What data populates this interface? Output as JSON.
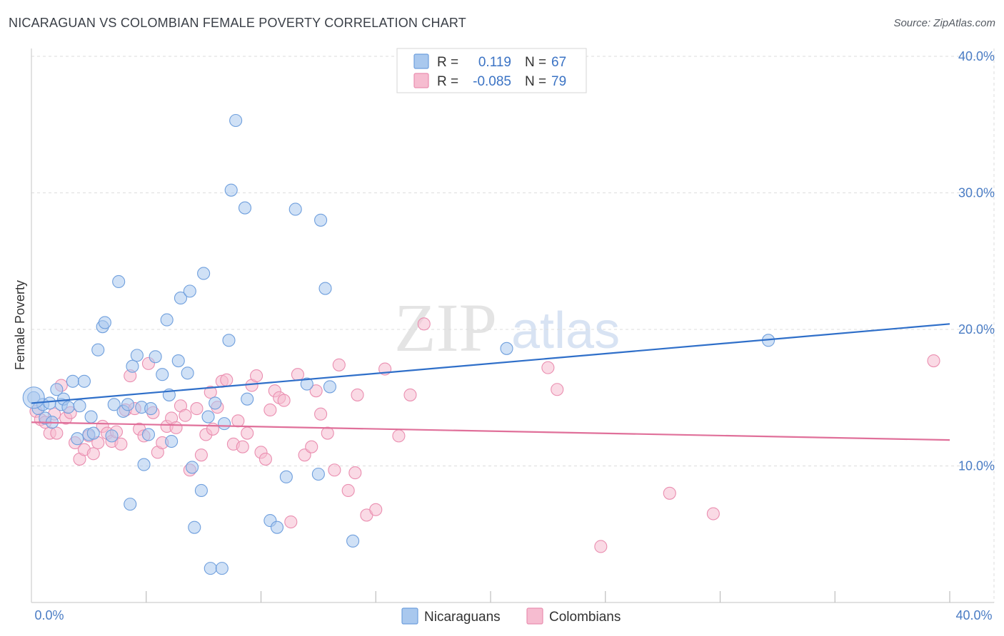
{
  "title": "NICARAGUAN VS COLOMBIAN FEMALE POVERTY CORRELATION CHART",
  "source": "Source: ZipAtlas.com",
  "watermark": {
    "zip": "ZIP",
    "atlas": "atlas"
  },
  "colors": {
    "nicaraguans_fill": "#a9c8ee",
    "nicaraguans_stroke": "#6f9fdd",
    "nicaraguans_line": "#2f6fc9",
    "colombians_fill": "#f6bcd0",
    "colombians_stroke": "#ea8eb0",
    "colombians_line": "#e0709a",
    "grid": "#dcdcdc",
    "tick_text": "#4a7cc4"
  },
  "legend": {
    "row1": {
      "r_label": "R =",
      "r_value": "0.119",
      "n_label": "N =",
      "n_value": "67"
    },
    "row2": {
      "r_label": "R =",
      "r_value": "-0.085",
      "n_label": "N =",
      "n_value": "79"
    }
  },
  "bottom_legend": {
    "series1": "Nicaraguans",
    "series2": "Colombians"
  },
  "chart_data": {
    "type": "scatter",
    "title": "NICARAGUAN VS COLOMBIAN FEMALE POVERTY CORRELATION CHART",
    "xlabel": "",
    "ylabel": "Female Poverty",
    "xlim": [
      0,
      40
    ],
    "ylim": [
      0,
      40
    ],
    "x_tick_labels": [
      "0.0%",
      "40.0%"
    ],
    "y_ticks": [
      10,
      20,
      30,
      40
    ],
    "y_tick_labels": [
      "10.0%",
      "20.0%",
      "30.0%",
      "40.0%"
    ],
    "series": [
      {
        "name": "Nicaraguans",
        "r": 0.119,
        "n": 67,
        "trend": {
          "x": [
            0,
            40
          ],
          "y": [
            14.6,
            20.4
          ]
        },
        "points": [
          [
            0.1,
            15.0
          ],
          [
            0.3,
            14.2
          ],
          [
            0.5,
            14.5
          ],
          [
            0.6,
            13.5
          ],
          [
            0.8,
            14.6
          ],
          [
            0.9,
            13.2
          ],
          [
            1.1,
            15.6
          ],
          [
            1.3,
            14.5
          ],
          [
            1.4,
            14.9
          ],
          [
            1.6,
            14.3
          ],
          [
            1.8,
            16.2
          ],
          [
            2.0,
            12.0
          ],
          [
            2.1,
            14.4
          ],
          [
            2.3,
            16.2
          ],
          [
            2.5,
            12.3
          ],
          [
            2.6,
            13.6
          ],
          [
            2.7,
            12.4
          ],
          [
            2.9,
            18.5
          ],
          [
            3.1,
            20.2
          ],
          [
            3.2,
            20.5
          ],
          [
            3.5,
            12.2
          ],
          [
            3.6,
            14.5
          ],
          [
            3.8,
            23.5
          ],
          [
            4.0,
            14.0
          ],
          [
            4.2,
            14.5
          ],
          [
            4.3,
            7.2
          ],
          [
            4.4,
            17.3
          ],
          [
            4.6,
            18.1
          ],
          [
            4.8,
            14.3
          ],
          [
            4.9,
            10.1
          ],
          [
            5.1,
            12.3
          ],
          [
            5.2,
            14.2
          ],
          [
            5.4,
            18.0
          ],
          [
            5.7,
            16.7
          ],
          [
            5.9,
            20.7
          ],
          [
            6.0,
            15.2
          ],
          [
            6.1,
            11.8
          ],
          [
            6.4,
            17.7
          ],
          [
            6.5,
            22.3
          ],
          [
            6.8,
            16.8
          ],
          [
            6.9,
            22.8
          ],
          [
            7.0,
            9.9
          ],
          [
            7.1,
            5.5
          ],
          [
            7.4,
            8.2
          ],
          [
            7.5,
            24.1
          ],
          [
            7.7,
            13.6
          ],
          [
            7.8,
            2.5
          ],
          [
            8.0,
            14.6
          ],
          [
            8.3,
            2.5
          ],
          [
            8.4,
            13.1
          ],
          [
            8.6,
            19.2
          ],
          [
            8.7,
            30.2
          ],
          [
            8.9,
            35.3
          ],
          [
            9.3,
            28.9
          ],
          [
            9.4,
            14.9
          ],
          [
            10.4,
            6.0
          ],
          [
            10.7,
            5.5
          ],
          [
            11.1,
            9.2
          ],
          [
            11.5,
            28.8
          ],
          [
            12.0,
            16.0
          ],
          [
            12.5,
            9.4
          ],
          [
            12.6,
            28.0
          ],
          [
            12.8,
            23.0
          ],
          [
            13.0,
            15.8
          ],
          [
            14.0,
            4.5
          ],
          [
            20.7,
            18.6
          ],
          [
            32.1,
            19.2
          ]
        ]
      },
      {
        "name": "Colombians",
        "r": -0.085,
        "n": 79,
        "trend": {
          "x": [
            0,
            40
          ],
          "y": [
            13.2,
            11.9
          ]
        },
        "points": [
          [
            0.2,
            14.0
          ],
          [
            0.4,
            13.4
          ],
          [
            0.6,
            13.2
          ],
          [
            0.8,
            12.4
          ],
          [
            1.0,
            13.8
          ],
          [
            1.1,
            12.4
          ],
          [
            1.3,
            15.9
          ],
          [
            1.5,
            13.5
          ],
          [
            1.7,
            13.9
          ],
          [
            1.9,
            11.7
          ],
          [
            2.1,
            10.5
          ],
          [
            2.3,
            11.2
          ],
          [
            2.5,
            12.2
          ],
          [
            2.7,
            10.9
          ],
          [
            2.9,
            11.7
          ],
          [
            3.1,
            12.9
          ],
          [
            3.3,
            12.4
          ],
          [
            3.5,
            11.8
          ],
          [
            3.7,
            12.5
          ],
          [
            3.9,
            11.6
          ],
          [
            4.1,
            14.1
          ],
          [
            4.3,
            16.6
          ],
          [
            4.5,
            14.2
          ],
          [
            4.7,
            12.7
          ],
          [
            4.9,
            12.2
          ],
          [
            5.1,
            17.5
          ],
          [
            5.3,
            13.9
          ],
          [
            5.5,
            11.0
          ],
          [
            5.7,
            11.7
          ],
          [
            5.9,
            12.9
          ],
          [
            6.1,
            13.5
          ],
          [
            6.3,
            12.8
          ],
          [
            6.5,
            14.4
          ],
          [
            6.7,
            13.7
          ],
          [
            6.9,
            9.7
          ],
          [
            7.2,
            14.2
          ],
          [
            7.4,
            10.8
          ],
          [
            7.6,
            12.3
          ],
          [
            7.8,
            15.4
          ],
          [
            7.9,
            12.7
          ],
          [
            8.1,
            14.3
          ],
          [
            8.3,
            16.2
          ],
          [
            8.5,
            16.3
          ],
          [
            8.8,
            11.6
          ],
          [
            9.0,
            13.3
          ],
          [
            9.2,
            11.4
          ],
          [
            9.4,
            12.4
          ],
          [
            9.6,
            15.9
          ],
          [
            9.8,
            16.6
          ],
          [
            10.0,
            11.0
          ],
          [
            10.2,
            10.5
          ],
          [
            10.4,
            14.1
          ],
          [
            10.6,
            15.5
          ],
          [
            10.8,
            15.0
          ],
          [
            11.0,
            14.8
          ],
          [
            11.3,
            5.9
          ],
          [
            11.6,
            16.7
          ],
          [
            11.9,
            10.8
          ],
          [
            12.2,
            11.4
          ],
          [
            12.4,
            15.5
          ],
          [
            12.6,
            13.8
          ],
          [
            12.9,
            12.4
          ],
          [
            13.2,
            9.7
          ],
          [
            13.4,
            17.4
          ],
          [
            13.8,
            8.2
          ],
          [
            14.2,
            15.2
          ],
          [
            14.6,
            6.4
          ],
          [
            15.0,
            6.8
          ],
          [
            15.4,
            17.1
          ],
          [
            16.0,
            12.2
          ],
          [
            16.5,
            15.2
          ],
          [
            17.1,
            20.4
          ],
          [
            22.5,
            17.2
          ],
          [
            22.9,
            15.6
          ],
          [
            24.8,
            4.1
          ],
          [
            27.8,
            8.0
          ],
          [
            29.7,
            6.5
          ],
          [
            39.3,
            17.7
          ],
          [
            14.1,
            9.5
          ]
        ]
      }
    ]
  }
}
